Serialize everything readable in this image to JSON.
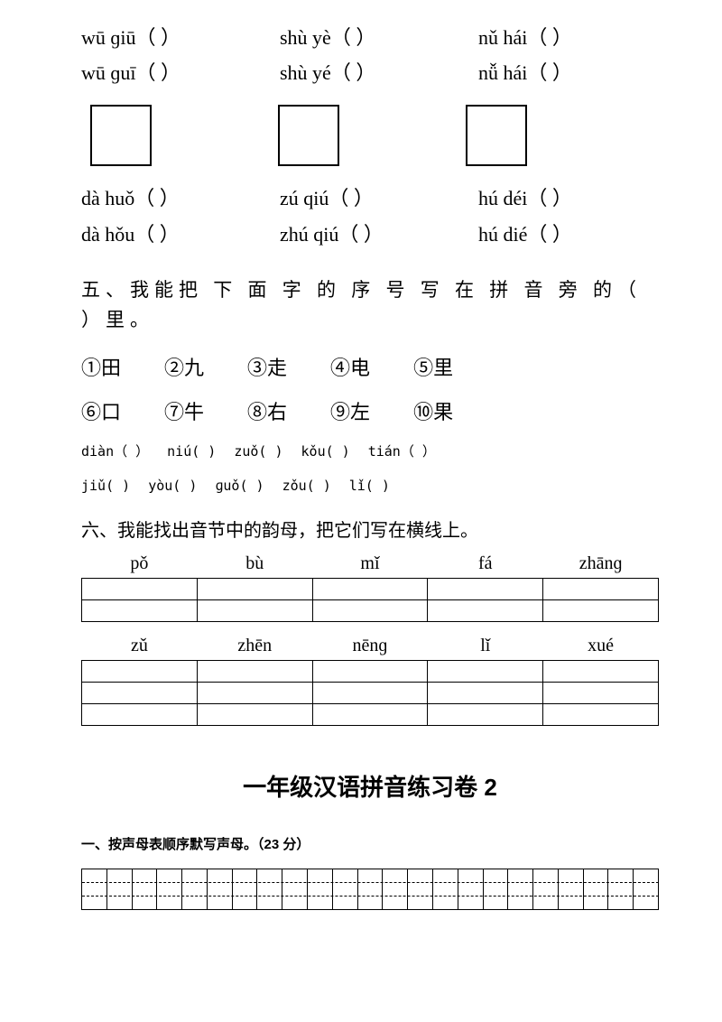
{
  "group1": {
    "row1": [
      "wū ɡiū（   ）",
      "shù yè（   ）",
      "nǔ hái（   ）"
    ],
    "row2": [
      "wū ɡuī（   ）",
      "shù yé（   ）",
      "nǚ hái（   ）"
    ]
  },
  "group2": {
    "row1": [
      "dà huǒ（   ）",
      "zú qiú（   ）",
      "hú déi（   ）"
    ],
    "row2": [
      "dà hǒu（   ）",
      "zhú qiú（   ）",
      "hú dié（   ）"
    ]
  },
  "section5": {
    "title": "五、我能把 下 面 字 的 序 号 写 在 拼 音 旁 的（ ）里。",
    "chars1": [
      "①田",
      "②九",
      "③走",
      "④电",
      "⑤里"
    ],
    "chars2": [
      "⑥口",
      "⑦牛",
      "⑧右",
      "⑨左",
      "⑩果"
    ],
    "pinyin1": [
      "diàn（  ）",
      "niú(   )",
      "zuǒ(   )",
      "kǒu(   )",
      "tián（  ）"
    ],
    "pinyin2": [
      "jiǔ(   )",
      "yòu(   )",
      "ɡuǒ(   )",
      "zǒu(   )",
      "lǐ(   )"
    ]
  },
  "section6": {
    "title": "六、我能找出音节中的韵母，把它们写在横线上。",
    "headers1": [
      "pǒ",
      "bù",
      "mǐ",
      "fá",
      "zhānɡ"
    ],
    "headers2": [
      "zǔ",
      "zhēn",
      "nēnɡ",
      "lǐ",
      "xué"
    ]
  },
  "title2": "一年级汉语拼音练习卷 2",
  "section_b1": "一、按声母表顺序默写声母。（23 分）",
  "grid_cells": 23,
  "colors": {
    "text": "#000000",
    "bg": "#ffffff"
  }
}
